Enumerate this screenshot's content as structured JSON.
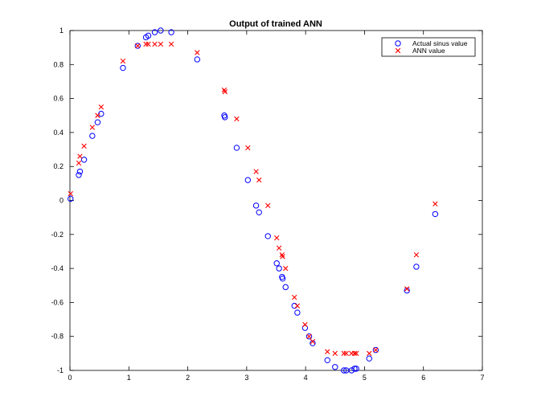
{
  "chart_data": {
    "type": "scatter",
    "title": "Output of trained ANN",
    "xlabel": "",
    "ylabel": "",
    "xlim": [
      0,
      7
    ],
    "ylim": [
      -1,
      1
    ],
    "xticks": [
      0,
      1,
      2,
      3,
      4,
      5,
      6,
      7
    ],
    "xtick_labels": [
      "0",
      "1",
      "2",
      "3",
      "4",
      "5",
      "6",
      "7"
    ],
    "yticks": [
      -1,
      -0.8,
      -0.6,
      -0.4,
      -0.2,
      0,
      0.2,
      0.4,
      0.6,
      0.8,
      1
    ],
    "ytick_labels": [
      "-1",
      "-0.8",
      "-0.6",
      "-0.4",
      "-0.2",
      "0",
      "0.2",
      "0.4",
      "0.6",
      "0.8",
      "1"
    ],
    "grid": false,
    "legend_position": "top-right",
    "series": [
      {
        "name": "Actual sinus value",
        "marker": "circle",
        "color": "#0000ff",
        "points": [
          [
            0.01,
            0.01
          ],
          [
            0.15,
            0.15
          ],
          [
            0.17,
            0.17
          ],
          [
            0.24,
            0.24
          ],
          [
            0.38,
            0.38
          ],
          [
            0.47,
            0.46
          ],
          [
            0.53,
            0.51
          ],
          [
            0.9,
            0.78
          ],
          [
            1.15,
            0.91
          ],
          [
            1.29,
            0.96
          ],
          [
            1.33,
            0.97
          ],
          [
            1.44,
            0.99
          ],
          [
            1.54,
            1.0
          ],
          [
            1.72,
            0.99
          ],
          [
            2.16,
            0.83
          ],
          [
            2.62,
            0.5
          ],
          [
            2.63,
            0.49
          ],
          [
            2.83,
            0.31
          ],
          [
            3.02,
            0.12
          ],
          [
            3.16,
            -0.03
          ],
          [
            3.21,
            -0.07
          ],
          [
            3.36,
            -0.21
          ],
          [
            3.51,
            -0.37
          ],
          [
            3.55,
            -0.4
          ],
          [
            3.6,
            -0.45
          ],
          [
            3.61,
            -0.46
          ],
          [
            3.66,
            -0.51
          ],
          [
            3.81,
            -0.62
          ],
          [
            3.86,
            -0.66
          ],
          [
            3.99,
            -0.75
          ],
          [
            4.06,
            -0.8
          ],
          [
            4.12,
            -0.84
          ],
          [
            4.37,
            -0.94
          ],
          [
            4.5,
            -0.98
          ],
          [
            4.65,
            -1.0
          ],
          [
            4.69,
            -1.0
          ],
          [
            4.78,
            -1.0
          ],
          [
            4.83,
            -0.99
          ],
          [
            4.86,
            -0.99
          ],
          [
            5.08,
            -0.93
          ],
          [
            5.19,
            -0.88
          ],
          [
            5.72,
            -0.53
          ],
          [
            5.88,
            -0.39
          ],
          [
            6.2,
            -0.08
          ]
        ]
      },
      {
        "name": "ANN value",
        "marker": "x",
        "color": "#ff0000",
        "points": [
          [
            0.01,
            0.04
          ],
          [
            0.15,
            0.22
          ],
          [
            0.17,
            0.26
          ],
          [
            0.24,
            0.32
          ],
          [
            0.38,
            0.43
          ],
          [
            0.47,
            0.5
          ],
          [
            0.53,
            0.55
          ],
          [
            0.9,
            0.82
          ],
          [
            1.15,
            0.91
          ],
          [
            1.29,
            0.92
          ],
          [
            1.33,
            0.92
          ],
          [
            1.44,
            0.92
          ],
          [
            1.54,
            0.92
          ],
          [
            1.72,
            0.92
          ],
          [
            2.16,
            0.87
          ],
          [
            2.62,
            0.65
          ],
          [
            2.63,
            0.64
          ],
          [
            2.83,
            0.48
          ],
          [
            3.02,
            0.31
          ],
          [
            3.16,
            0.17
          ],
          [
            3.21,
            0.12
          ],
          [
            3.36,
            -0.03
          ],
          [
            3.51,
            -0.22
          ],
          [
            3.55,
            -0.28
          ],
          [
            3.6,
            -0.32
          ],
          [
            3.61,
            -0.33
          ],
          [
            3.66,
            -0.4
          ],
          [
            3.81,
            -0.57
          ],
          [
            3.86,
            -0.62
          ],
          [
            3.99,
            -0.73
          ],
          [
            4.06,
            -0.8
          ],
          [
            4.12,
            -0.83
          ],
          [
            4.37,
            -0.89
          ],
          [
            4.5,
            -0.9
          ],
          [
            4.65,
            -0.9
          ],
          [
            4.69,
            -0.9
          ],
          [
            4.78,
            -0.9
          ],
          [
            4.83,
            -0.9
          ],
          [
            4.86,
            -0.9
          ],
          [
            5.08,
            -0.9
          ],
          [
            5.19,
            -0.88
          ],
          [
            5.72,
            -0.52
          ],
          [
            5.88,
            -0.32
          ],
          [
            6.2,
            -0.02
          ]
        ]
      }
    ]
  }
}
